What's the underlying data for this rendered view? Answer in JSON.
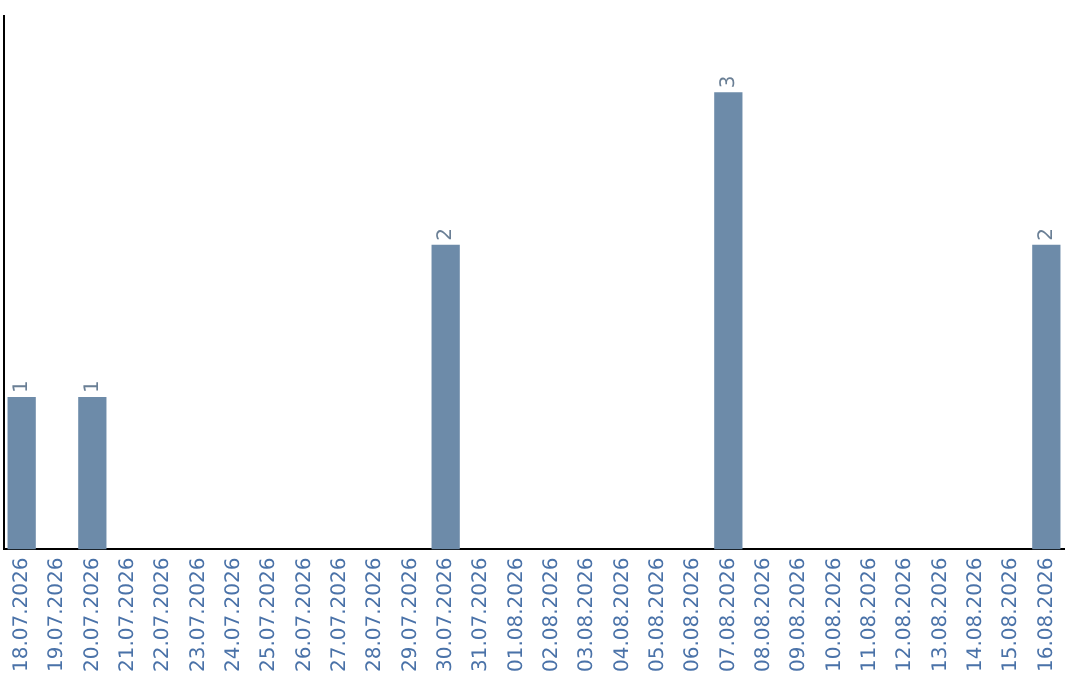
{
  "chart_data": {
    "type": "bar",
    "categories": [
      "18.07.2026",
      "19.07.2026",
      "20.07.2026",
      "21.07.2026",
      "22.07.2026",
      "23.07.2026",
      "24.07.2026",
      "25.07.2026",
      "26.07.2026",
      "27.07.2026",
      "28.07.2026",
      "29.07.2026",
      "30.07.2026",
      "31.07.2026",
      "01.08.2026",
      "02.08.2026",
      "03.08.2026",
      "04.08.2026",
      "05.08.2026",
      "06.08.2026",
      "07.08.2026",
      "08.08.2026",
      "09.08.2026",
      "10.08.2026",
      "11.08.2026",
      "12.08.2026",
      "13.08.2026",
      "14.08.2026",
      "15.08.2026",
      "16.08.2026"
    ],
    "values": [
      1,
      0,
      1,
      0,
      0,
      0,
      0,
      0,
      0,
      0,
      0,
      0,
      2,
      0,
      0,
      0,
      0,
      0,
      0,
      0,
      3,
      0,
      0,
      0,
      0,
      0,
      0,
      0,
      0,
      2
    ],
    "value_labels": [
      "1",
      null,
      "1",
      null,
      null,
      null,
      null,
      null,
      null,
      null,
      null,
      null,
      "2",
      null,
      null,
      null,
      null,
      null,
      null,
      null,
      "3",
      null,
      null,
      null,
      null,
      null,
      null,
      null,
      null,
      "2"
    ],
    "color": "#6d8ba9",
    "grid": false,
    "legend": false,
    "tick_labels": "x"
  }
}
